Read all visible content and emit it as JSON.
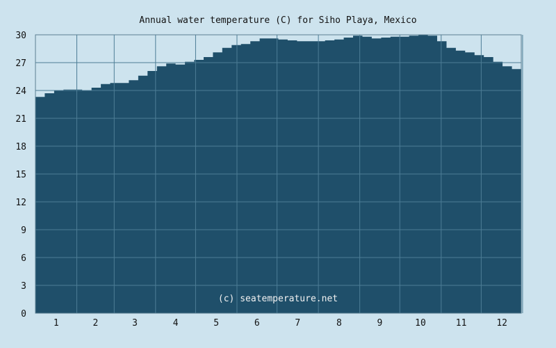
{
  "chart_data": {
    "type": "area",
    "title": "Annual water temperature (C) for Siho Playa, Mexico",
    "watermark": "(c) seatemperature.net",
    "xlabel": "",
    "ylabel": "",
    "ylim": [
      0,
      30
    ],
    "y_ticks": [
      "0",
      "3",
      "6",
      "9",
      "12",
      "15",
      "18",
      "21",
      "24",
      "27",
      "30"
    ],
    "x_ticks": [
      "1",
      "2",
      "3",
      "4",
      "5",
      "6",
      "7",
      "8",
      "9",
      "10",
      "11",
      "12"
    ],
    "grid": true,
    "colors": {
      "background": "#cde3ee",
      "fill": "#1f4f6a",
      "grid": "#4d7d96",
      "axis": "#5a7f92"
    },
    "x_day_of_year": [
      1,
      8,
      15,
      22,
      29,
      36,
      43,
      50,
      57,
      64,
      71,
      78,
      85,
      92,
      99,
      106,
      113,
      120,
      127,
      134,
      141,
      148,
      155,
      162,
      169,
      176,
      183,
      190,
      197,
      204,
      211,
      218,
      225,
      232,
      239,
      246,
      253,
      260,
      267,
      274,
      281,
      288,
      295,
      302,
      309,
      316,
      323,
      330,
      337,
      344,
      351,
      358,
      365
    ],
    "series": [
      {
        "values": [
          23.3,
          23.7,
          24.0,
          24.1,
          24.1,
          24.0,
          24.3,
          24.7,
          24.8,
          24.8,
          25.1,
          25.6,
          26.1,
          26.6,
          26.9,
          26.8,
          27.1,
          27.3,
          27.6,
          28.1,
          28.6,
          28.9,
          29.0,
          29.3,
          29.6,
          29.6,
          29.5,
          29.4,
          29.3,
          29.3,
          29.3,
          29.4,
          29.5,
          29.7,
          29.9,
          29.8,
          29.6,
          29.7,
          29.8,
          29.8,
          29.9,
          30.0,
          29.9,
          29.3,
          28.6,
          28.3,
          28.1,
          27.8,
          27.6,
          27.1,
          26.6,
          26.3,
          25.8
        ]
      }
    ]
  }
}
